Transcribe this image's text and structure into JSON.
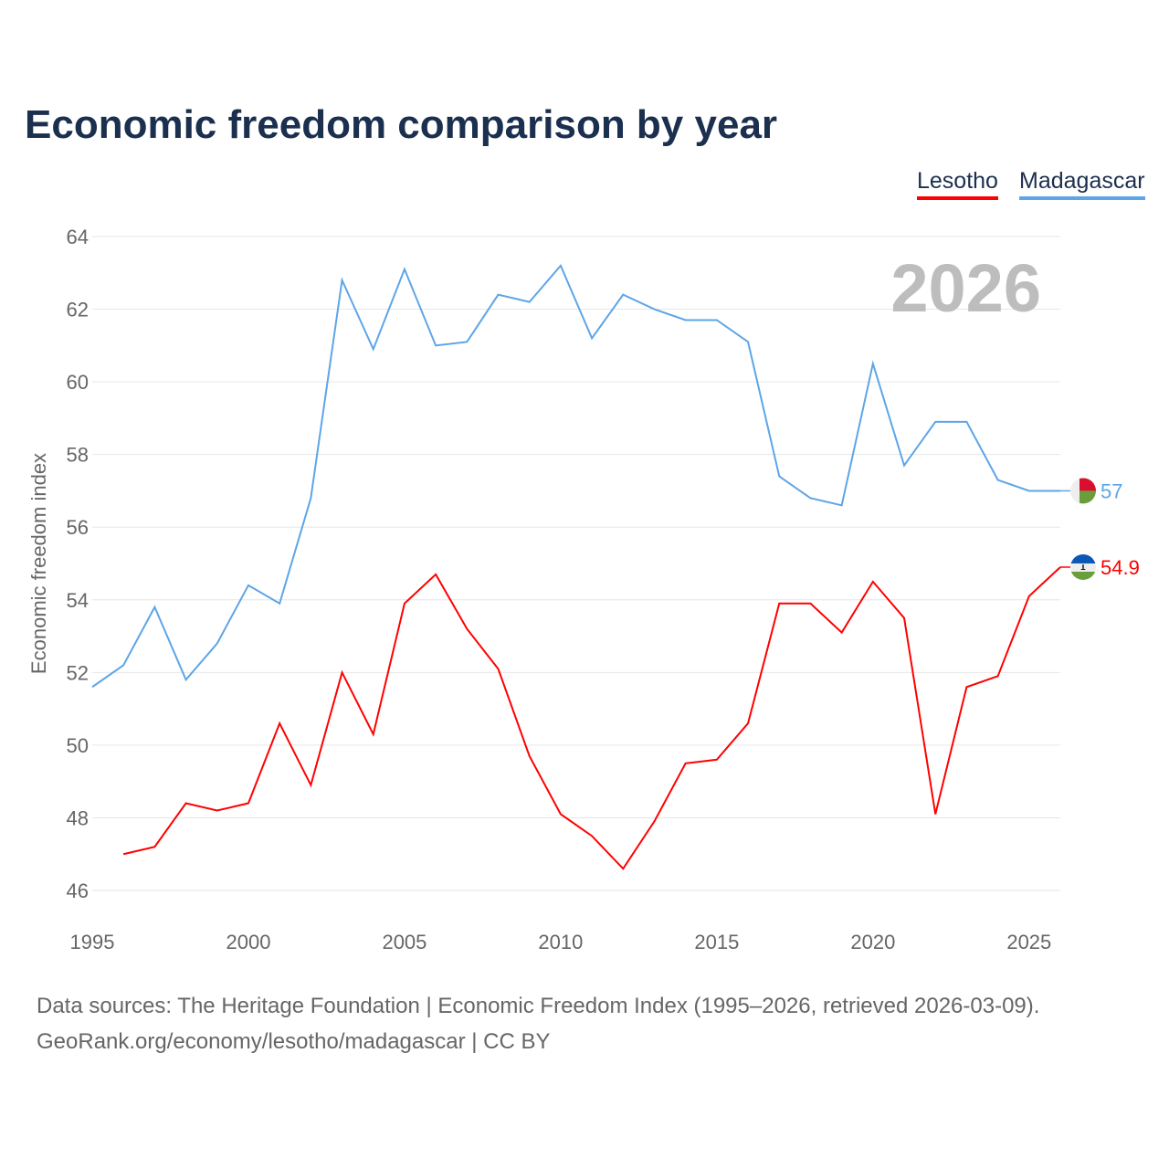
{
  "chart_data": {
    "type": "line",
    "title": "Economic freedom comparison by year",
    "xlabel": "",
    "ylabel": "Economic freedom index",
    "xlim": [
      1995,
      2026
    ],
    "ylim": [
      46,
      64
    ],
    "yticks": [
      46,
      48,
      50,
      52,
      54,
      56,
      58,
      60,
      62,
      64
    ],
    "xticks": [
      1995,
      2000,
      2005,
      2010,
      2015,
      2020,
      2025
    ],
    "grid": true,
    "legend_position": "top-right",
    "year_label": "2026",
    "series": [
      {
        "name": "Lesotho",
        "color": "#ff0000",
        "end_label": "54.9",
        "x": [
          1996,
          1997,
          1998,
          1999,
          2000,
          2001,
          2002,
          2003,
          2004,
          2005,
          2006,
          2007,
          2008,
          2009,
          2010,
          2011,
          2012,
          2013,
          2014,
          2015,
          2016,
          2017,
          2018,
          2019,
          2020,
          2021,
          2022,
          2023,
          2024,
          2025,
          2026
        ],
        "values": [
          47.0,
          47.2,
          48.4,
          48.2,
          48.4,
          50.6,
          48.9,
          52.0,
          50.3,
          53.9,
          54.7,
          53.2,
          52.1,
          49.7,
          48.1,
          47.5,
          46.6,
          47.9,
          49.5,
          49.6,
          50.6,
          53.9,
          53.9,
          53.1,
          54.5,
          53.5,
          48.1,
          51.6,
          51.9,
          54.1,
          54.9
        ]
      },
      {
        "name": "Madagascar",
        "color": "#5da5e8",
        "end_label": "57",
        "x": [
          1995,
          1996,
          1997,
          1998,
          1999,
          2000,
          2001,
          2002,
          2003,
          2004,
          2005,
          2006,
          2007,
          2008,
          2009,
          2010,
          2011,
          2012,
          2013,
          2014,
          2015,
          2016,
          2017,
          2018,
          2019,
          2020,
          2021,
          2022,
          2023,
          2024,
          2025,
          2026
        ],
        "values": [
          51.6,
          52.2,
          53.8,
          51.8,
          52.8,
          54.4,
          53.9,
          56.8,
          62.8,
          60.9,
          63.1,
          61.0,
          61.1,
          62.4,
          62.2,
          63.2,
          61.2,
          62.4,
          62.0,
          61.7,
          61.7,
          61.1,
          57.4,
          56.8,
          56.6,
          60.5,
          57.7,
          58.9,
          58.9,
          57.3,
          57.0,
          57.0
        ]
      }
    ]
  },
  "footer": {
    "line1": "Data sources: The Heritage Foundation | Economic Freedom Index (1995–2026, retrieved 2026-03-09).",
    "line2": "GeoRank.org/economy/lesotho/madagascar | CC BY"
  }
}
